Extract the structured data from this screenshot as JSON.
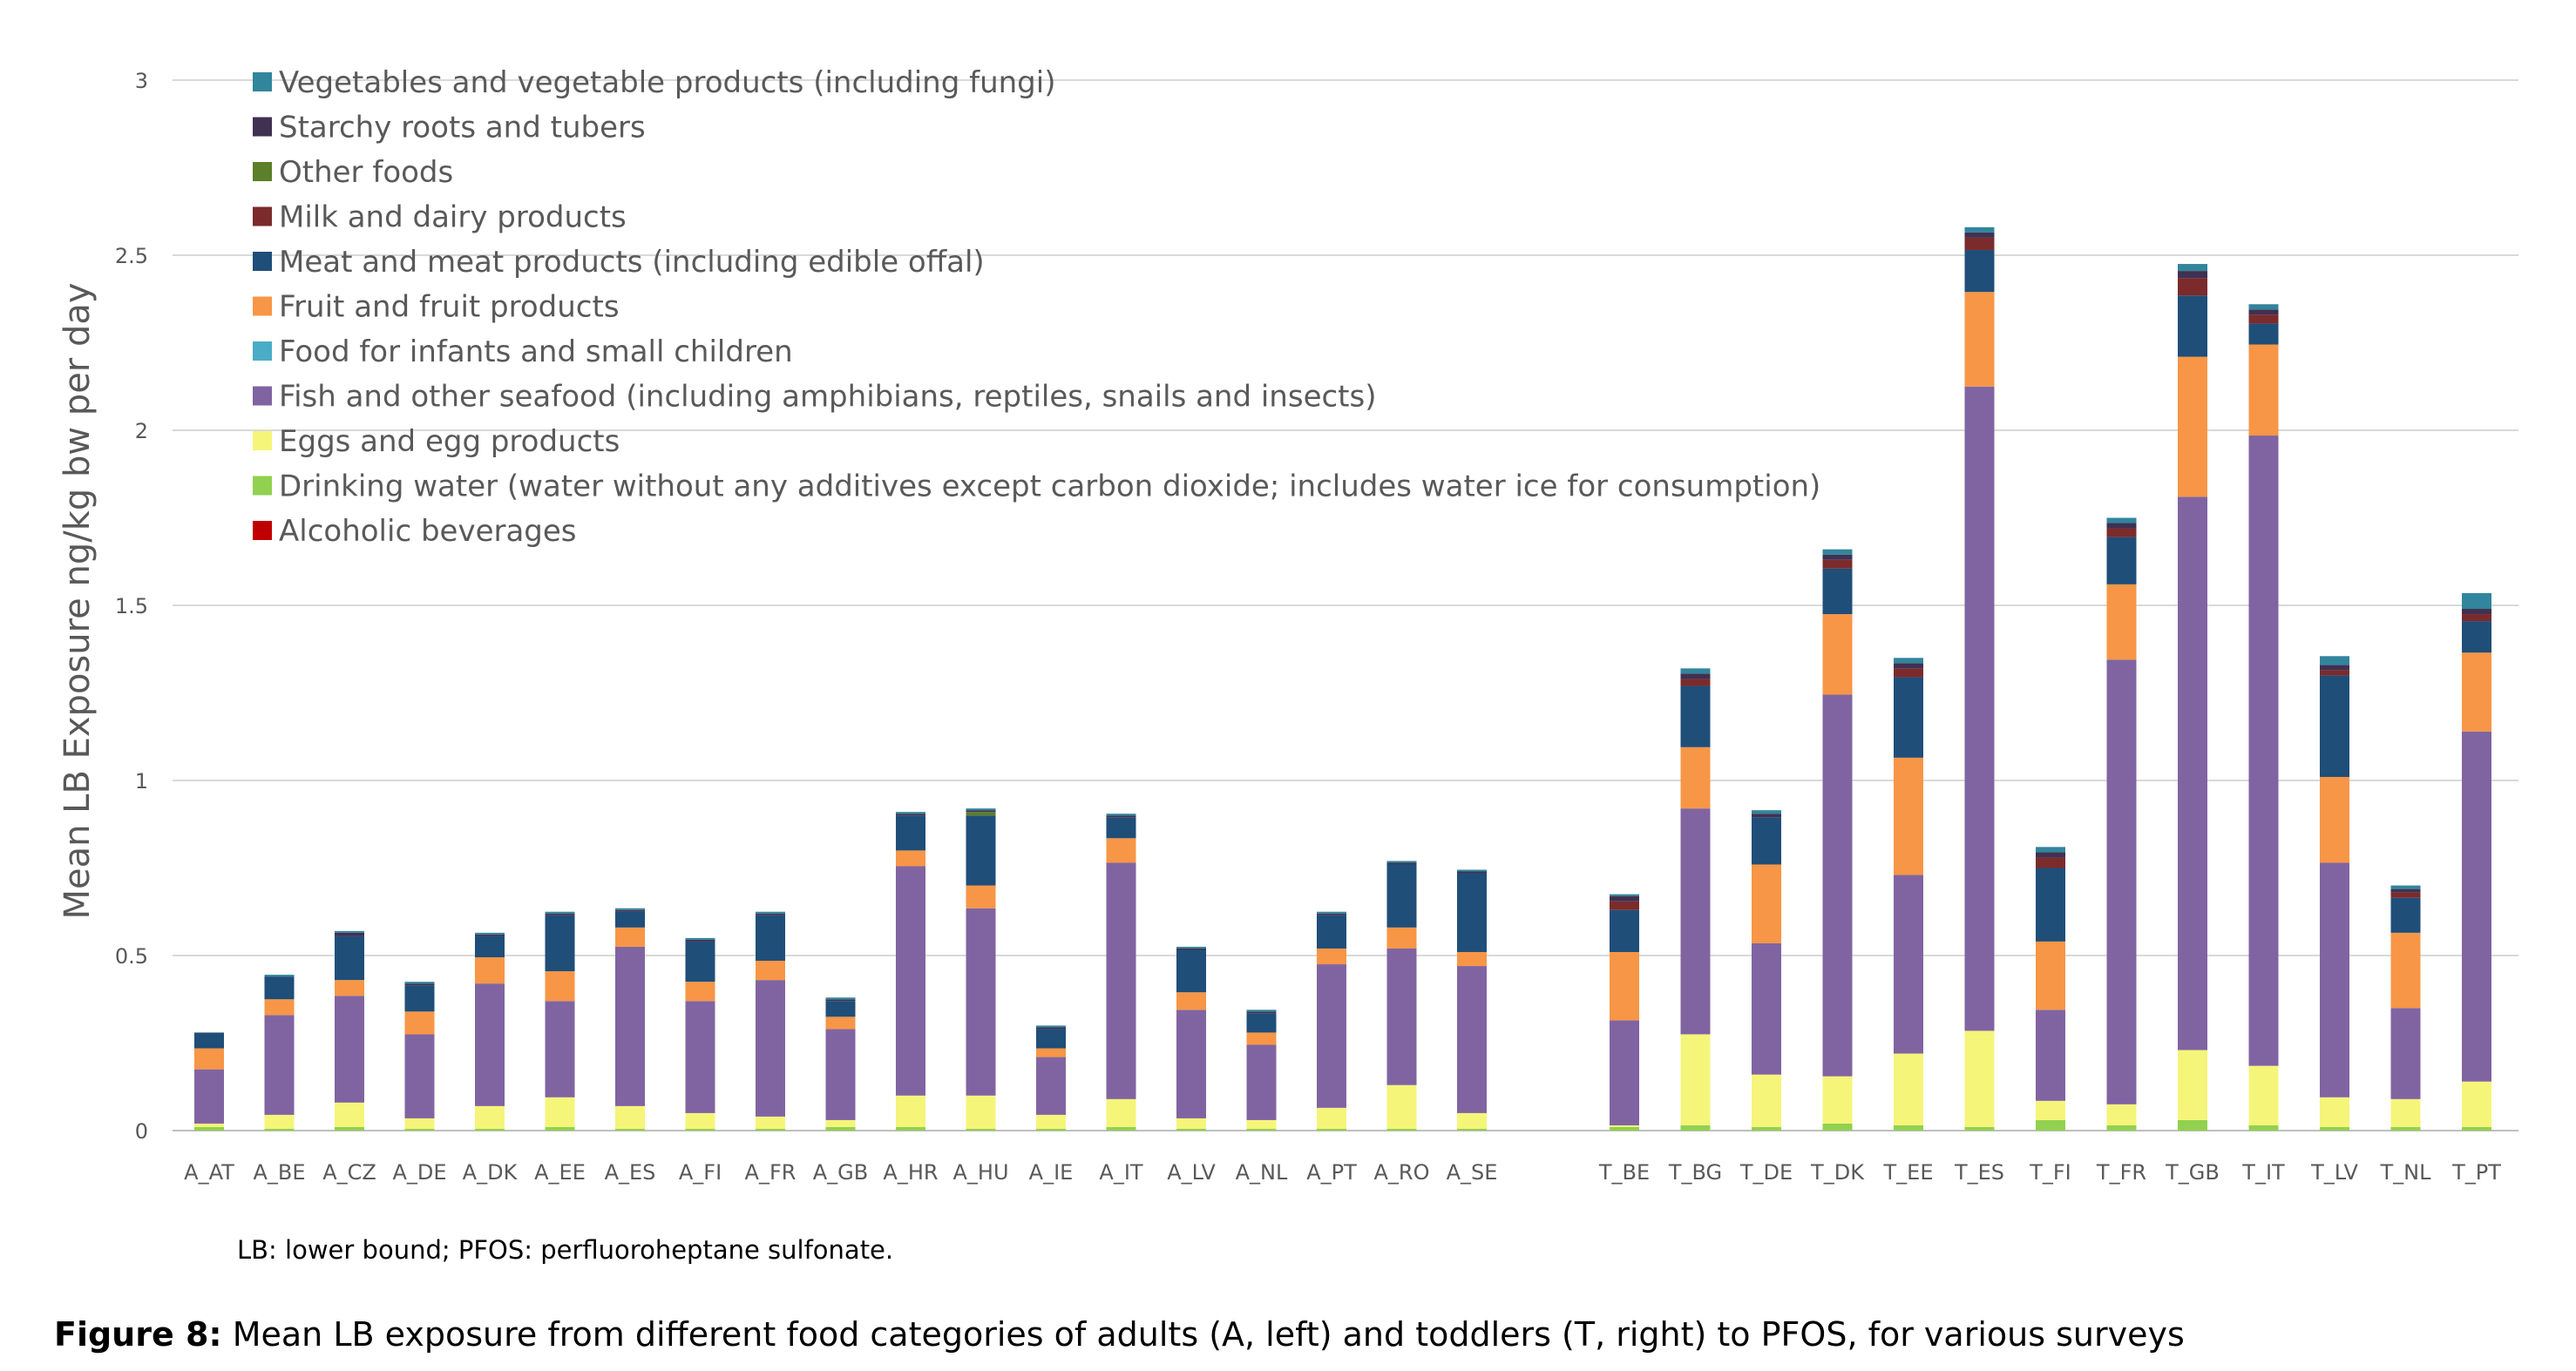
{
  "chart_data": {
    "type": "bar",
    "stacked": true,
    "ylabel": "Mean LB Exposure ng/kg bw per day",
    "ylim": [
      0,
      3
    ],
    "yticks": [
      "0",
      "0.5",
      "1",
      "1.5",
      "2",
      "2.5",
      "3"
    ],
    "grid": true,
    "legend_position": "top-left",
    "categories": [
      "A_AT",
      "A_BE",
      "A_CZ",
      "A_DE",
      "A_DK",
      "A_EE",
      "A_ES",
      "A_FI",
      "A_FR",
      "A_GB",
      "A_HR",
      "A_HU",
      "A_IE",
      "A_IT",
      "A_LV",
      "A_NL",
      "A_PT",
      "A_RO",
      "A_SE",
      "T_BE",
      "T_BG",
      "T_DE",
      "T_DK",
      "T_EE",
      "T_ES",
      "T_FI",
      "T_FR",
      "T_GB",
      "T_IT",
      "T_LV",
      "T_NL",
      "T_PT"
    ],
    "series": [
      {
        "name": "Alcoholic beverages",
        "color": "#c00000",
        "values": [
          0,
          0,
          0,
          0,
          0,
          0,
          0,
          0,
          0,
          0,
          0,
          0,
          0,
          0,
          0,
          0,
          0,
          0,
          0,
          0,
          0,
          0,
          0,
          0,
          0,
          0,
          0,
          0,
          0,
          0,
          0,
          0
        ]
      },
      {
        "name": "Drinking water (water without any additives except carbon dioxide; includes water ice for consumption)",
        "color": "#92d050",
        "values": [
          0.01,
          0.005,
          0.01,
          0.005,
          0.005,
          0.01,
          0.005,
          0.005,
          0.005,
          0.01,
          0.01,
          0.005,
          0.005,
          0.01,
          0.005,
          0.005,
          0.005,
          0.005,
          0.005,
          0.01,
          0.015,
          0.01,
          0.02,
          0.015,
          0.01,
          0.03,
          0.015,
          0.03,
          0.015,
          0.01,
          0.01,
          0.01
        ]
      },
      {
        "name": "Eggs and egg products",
        "color": "#f5f57a",
        "values": [
          0.01,
          0.04,
          0.07,
          0.03,
          0.065,
          0.085,
          0.065,
          0.045,
          0.035,
          0.02,
          0.09,
          0.095,
          0.04,
          0.08,
          0.03,
          0.025,
          0.06,
          0.125,
          0.045,
          0.005,
          0.26,
          0.15,
          0.135,
          0.205,
          0.275,
          0.055,
          0.06,
          0.2,
          0.17,
          0.085,
          0.08,
          0.13
        ]
      },
      {
        "name": "Fish and other seafood (including amphibians, reptiles, snails and insects)",
        "color": "#8064a2",
        "values": [
          0.155,
          0.285,
          0.305,
          0.24,
          0.35,
          0.275,
          0.455,
          0.32,
          0.39,
          0.26,
          0.655,
          0.535,
          0.165,
          0.675,
          0.31,
          0.215,
          0.41,
          0.39,
          0.42,
          0.3,
          0.645,
          0.375,
          1.09,
          0.51,
          1.84,
          0.26,
          1.27,
          1.58,
          1.8,
          0.67,
          0.26,
          1.0
        ]
      },
      {
        "name": "Food for infants and small children",
        "color": "#4bacc6",
        "values": [
          0,
          0,
          0,
          0,
          0,
          0,
          0,
          0,
          0,
          0,
          0,
          0,
          0,
          0,
          0,
          0,
          0,
          0,
          0,
          0,
          0,
          0,
          0,
          0,
          0,
          0,
          0,
          0,
          0,
          0,
          0,
          0
        ]
      },
      {
        "name": "Fruit and fruit products",
        "color": "#f79646",
        "values": [
          0.06,
          0.045,
          0.045,
          0.065,
          0.075,
          0.085,
          0.055,
          0.055,
          0.055,
          0.035,
          0.045,
          0.065,
          0.025,
          0.07,
          0.05,
          0.035,
          0.045,
          0.06,
          0.04,
          0.195,
          0.175,
          0.225,
          0.23,
          0.335,
          0.27,
          0.195,
          0.215,
          0.4,
          0.26,
          0.245,
          0.215,
          0.225
        ]
      },
      {
        "name": "Meat and meat products (including edible offal)",
        "color": "#1f4e79",
        "values": [
          0.045,
          0.065,
          0.125,
          0.075,
          0.06,
          0.16,
          0.045,
          0.115,
          0.13,
          0.045,
          0.1,
          0.2,
          0.055,
          0.06,
          0.12,
          0.055,
          0.095,
          0.18,
          0.225,
          0.12,
          0.175,
          0.135,
          0.13,
          0.23,
          0.12,
          0.21,
          0.135,
          0.175,
          0.06,
          0.29,
          0.1,
          0.09
        ]
      },
      {
        "name": "Milk and dairy products",
        "color": "#7b2b2b",
        "values": [
          0,
          0,
          0,
          0,
          0,
          0,
          0,
          0,
          0,
          0,
          0,
          0,
          0,
          0,
          0,
          0,
          0,
          0,
          0,
          0.025,
          0.02,
          0,
          0.025,
          0.025,
          0.035,
          0.03,
          0.025,
          0.05,
          0.025,
          0.015,
          0.015,
          0.02
        ]
      },
      {
        "name": "Other foods",
        "color": "#5c7f2a",
        "values": [
          0,
          0,
          0,
          0,
          0,
          0,
          0,
          0,
          0,
          0,
          0,
          0.01,
          0,
          0,
          0,
          0,
          0,
          0,
          0,
          0,
          0,
          0,
          0,
          0,
          0,
          0,
          0,
          0,
          0,
          0,
          0,
          0
        ]
      },
      {
        "name": "Starchy roots and tubers",
        "color": "#403152",
        "values": [
          0,
          0,
          0.01,
          0.005,
          0.005,
          0.005,
          0.005,
          0.005,
          0.005,
          0.005,
          0.005,
          0.005,
          0.005,
          0.005,
          0.005,
          0.005,
          0.005,
          0.005,
          0.005,
          0.015,
          0.015,
          0.01,
          0.015,
          0.015,
          0.015,
          0.015,
          0.015,
          0.02,
          0.015,
          0.015,
          0.01,
          0.015
        ]
      },
      {
        "name": "Vegetables and vegetable products (including fungi)",
        "color": "#31859c",
        "values": [
          0,
          0.005,
          0.005,
          0.005,
          0.005,
          0.005,
          0.005,
          0.005,
          0.005,
          0.005,
          0.005,
          0.005,
          0.005,
          0.005,
          0.005,
          0.005,
          0.005,
          0.005,
          0.005,
          0.005,
          0.015,
          0.01,
          0.015,
          0.015,
          0.015,
          0.015,
          0.015,
          0.02,
          0.015,
          0.025,
          0.01,
          0.045
        ]
      }
    ],
    "legend_order": [
      10,
      9,
      8,
      7,
      6,
      5,
      4,
      3,
      2,
      1,
      0
    ]
  },
  "note": "LB: lower bound; PFOS: perfluoroheptane sulfonate.",
  "caption": {
    "label": "Figure 8:",
    "text": "Mean LB exposure from different food categories of adults (A, left) and toddlers (T, right) to PFOS, for various surveys"
  }
}
